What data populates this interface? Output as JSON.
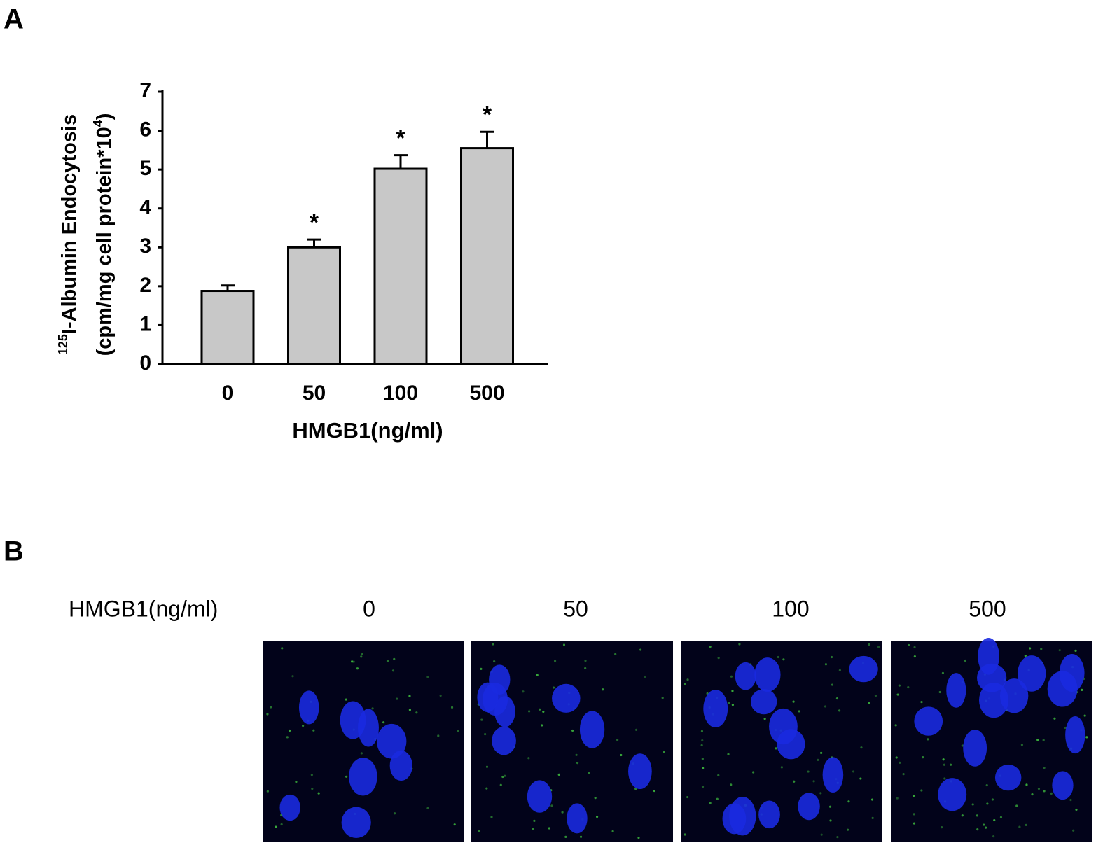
{
  "chart_data": {
    "type": "bar",
    "panel_label": "A",
    "xlabel": "HMGB1(ng/ml)",
    "ylabel": {
      "sup1": "125",
      "line1": "I-Albumin Endocytosis",
      "line2": "(cpm/mg cell protein*10",
      "sup2": "4",
      "line2_end": ")"
    },
    "categories": [
      "0",
      "50",
      "100",
      "500"
    ],
    "values": [
      1.88,
      3.0,
      5.02,
      5.55
    ],
    "errors": [
      0.14,
      0.2,
      0.35,
      0.42
    ],
    "annotations": [
      null,
      "*",
      "*",
      "*"
    ],
    "color": "#c8c8c8",
    "ylim": [
      0,
      7
    ],
    "yticks": [
      0,
      1,
      2,
      3,
      4,
      5,
      6,
      7
    ]
  },
  "panel_b": {
    "label": "B",
    "row_label": "HMGB1(ng/ml)",
    "columns": [
      "0",
      "50",
      "100",
      "500"
    ]
  }
}
